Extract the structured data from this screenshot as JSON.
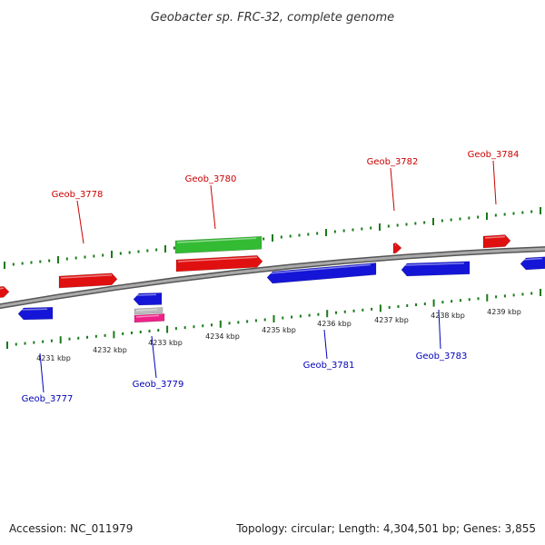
{
  "title": "Geobacter sp. FRC-32, complete genome",
  "footer": {
    "accession": "Accession: NC_011979",
    "summary": "Topology: circular; Length: 4,304,501 bp; Genes: 3,855"
  },
  "colors": {
    "forward": "#e01010",
    "reverse": "#1515d8",
    "rna": "#33bb33",
    "pseudo": "#bbbbbb",
    "misc": "#ee2288",
    "backbone": "#888888",
    "tick": "#1a7a1a",
    "label_forward": "#cc0000",
    "label_reverse": "#0000bb"
  },
  "scale_ticks": [
    "4231 kbp",
    "4232 kbp",
    "4233 kbp",
    "4234 kbp",
    "4235 kbp",
    "4236 kbp",
    "4237 kbp",
    "4238 kbp",
    "4239 kbp"
  ],
  "gene_labels": [
    {
      "id": "Geob_3777",
      "strand": "reverse"
    },
    {
      "id": "Geob_3778",
      "strand": "forward"
    },
    {
      "id": "Geob_3779",
      "strand": "reverse"
    },
    {
      "id": "Geob_3780",
      "strand": "forward"
    },
    {
      "id": "Geob_3781",
      "strand": "reverse"
    },
    {
      "id": "Geob_3782",
      "strand": "forward"
    },
    {
      "id": "Geob_3783",
      "strand": "reverse"
    },
    {
      "id": "Geob_3784",
      "strand": "forward"
    }
  ]
}
